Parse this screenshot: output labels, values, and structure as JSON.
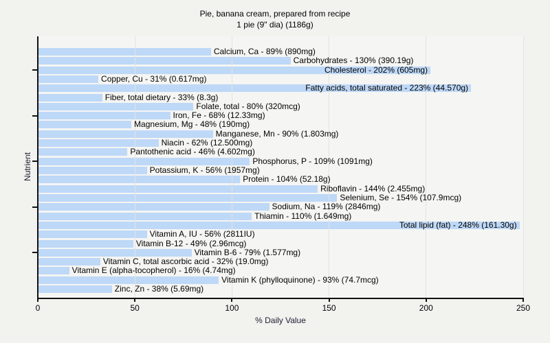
{
  "chart_data": {
    "type": "bar",
    "orientation": "horizontal",
    "title": "Pie, banana cream, prepared from recipe",
    "subtitle": "1 pie (9\" dia) (1186g)",
    "xlabel": "% Daily Value",
    "ylabel": "Nutrient",
    "xlim": [
      0,
      250
    ],
    "xticks": [
      0,
      50,
      100,
      150,
      200,
      250
    ],
    "grid": "vertical",
    "legend": "none",
    "bar_color": "#bed8f7",
    "categories": [
      "Calcium, Ca",
      "Carbohydrates",
      "Cholesterol",
      "Copper, Cu",
      "Fatty acids, total saturated",
      "Fiber, total dietary",
      "Folate, total",
      "Iron, Fe",
      "Magnesium, Mg",
      "Manganese, Mn",
      "Niacin",
      "Pantothenic acid",
      "Phosphorus, P",
      "Potassium, K",
      "Protein",
      "Riboflavin",
      "Selenium, Se",
      "Sodium, Na",
      "Thiamin",
      "Total lipid (fat)",
      "Vitamin A, IU",
      "Vitamin B-12",
      "Vitamin B-6",
      "Vitamin C, total ascorbic acid",
      "Vitamin E (alpha-tocopherol)",
      "Vitamin K (phylloquinone)",
      "Zinc, Zn"
    ],
    "values": [
      89,
      130,
      202,
      31,
      223,
      33,
      80,
      68,
      48,
      90,
      62,
      46,
      109,
      56,
      104,
      144,
      154,
      119,
      110,
      248,
      56,
      49,
      79,
      32,
      16,
      93,
      38
    ],
    "items": [
      {
        "name": "Calcium, Ca",
        "percent": 89,
        "amount": "890mg",
        "label": "Calcium, Ca - 89% (890mg)"
      },
      {
        "name": "Carbohydrates",
        "percent": 130,
        "amount": "390.19g",
        "label": "Carbohydrates - 130% (390.19g)"
      },
      {
        "name": "Cholesterol",
        "percent": 202,
        "amount": "605mg",
        "label": "Cholesterol - 202% (605mg)"
      },
      {
        "name": "Copper, Cu",
        "percent": 31,
        "amount": "0.617mg",
        "label": "Copper, Cu - 31% (0.617mg)"
      },
      {
        "name": "Fatty acids, total saturated",
        "percent": 223,
        "amount": "44.570g",
        "label": "Fatty acids, total saturated - 223% (44.570g)"
      },
      {
        "name": "Fiber, total dietary",
        "percent": 33,
        "amount": "8.3g",
        "label": "Fiber, total dietary - 33% (8.3g)"
      },
      {
        "name": "Folate, total",
        "percent": 80,
        "amount": "320mcg",
        "label": "Folate, total - 80% (320mcg)"
      },
      {
        "name": "Iron, Fe",
        "percent": 68,
        "amount": "12.33mg",
        "label": "Iron, Fe - 68% (12.33mg)"
      },
      {
        "name": "Magnesium, Mg",
        "percent": 48,
        "amount": "190mg",
        "label": "Magnesium, Mg - 48% (190mg)"
      },
      {
        "name": "Manganese, Mn",
        "percent": 90,
        "amount": "1.803mg",
        "label": "Manganese, Mn - 90% (1.803mg)"
      },
      {
        "name": "Niacin",
        "percent": 62,
        "amount": "12.500mg",
        "label": "Niacin - 62% (12.500mg)"
      },
      {
        "name": "Pantothenic acid",
        "percent": 46,
        "amount": "4.602mg",
        "label": "Pantothenic acid - 46% (4.602mg)"
      },
      {
        "name": "Phosphorus, P",
        "percent": 109,
        "amount": "1091mg",
        "label": "Phosphorus, P - 109% (1091mg)"
      },
      {
        "name": "Potassium, K",
        "percent": 56,
        "amount": "1957mg",
        "label": "Potassium, K - 56% (1957mg)"
      },
      {
        "name": "Protein",
        "percent": 104,
        "amount": "52.18g",
        "label": "Protein - 104% (52.18g)"
      },
      {
        "name": "Riboflavin",
        "percent": 144,
        "amount": "2.455mg",
        "label": "Riboflavin - 144% (2.455mg)"
      },
      {
        "name": "Selenium, Se",
        "percent": 154,
        "amount": "107.9mcg",
        "label": "Selenium, Se - 154% (107.9mcg)"
      },
      {
        "name": "Sodium, Na",
        "percent": 119,
        "amount": "2846mg",
        "label": "Sodium, Na - 119% (2846mg)"
      },
      {
        "name": "Thiamin",
        "percent": 110,
        "amount": "1.649mg",
        "label": "Thiamin - 110% (1.649mg)"
      },
      {
        "name": "Total lipid (fat)",
        "percent": 248,
        "amount": "161.30g",
        "label": "Total lipid (fat) - 248% (161.30g)"
      },
      {
        "name": "Vitamin A, IU",
        "percent": 56,
        "amount": "2811IU",
        "label": "Vitamin A, IU - 56% (2811IU)"
      },
      {
        "name": "Vitamin B-12",
        "percent": 49,
        "amount": "2.96mcg",
        "label": "Vitamin B-12 - 49% (2.96mcg)"
      },
      {
        "name": "Vitamin B-6",
        "percent": 79,
        "amount": "1.577mg",
        "label": "Vitamin B-6 - 79% (1.577mg)"
      },
      {
        "name": "Vitamin C, total ascorbic acid",
        "percent": 32,
        "amount": "19.0mg",
        "label": "Vitamin C, total ascorbic acid - 32% (19.0mg)"
      },
      {
        "name": "Vitamin E (alpha-tocopherol)",
        "percent": 16,
        "amount": "4.74mg",
        "label": "Vitamin E (alpha-tocopherol) - 16% (4.74mg)"
      },
      {
        "name": "Vitamin K (phylloquinone)",
        "percent": 93,
        "amount": "74.7mcg",
        "label": "Vitamin K (phylloquinone) - 93% (74.7mcg)"
      },
      {
        "name": "Zinc, Zn",
        "percent": 38,
        "amount": "5.69mg",
        "label": "Zinc, Zn - 38% (5.69mg)"
      }
    ]
  },
  "colors": {
    "figure_background": "#f2f2ef",
    "plot_background": "#f5f5f3",
    "bar_fill": "#bed8f7",
    "axis_spine": "#111111",
    "gridline": "#e3e3e0",
    "text": "#000000",
    "axis_name_text": "#1d1d30"
  }
}
